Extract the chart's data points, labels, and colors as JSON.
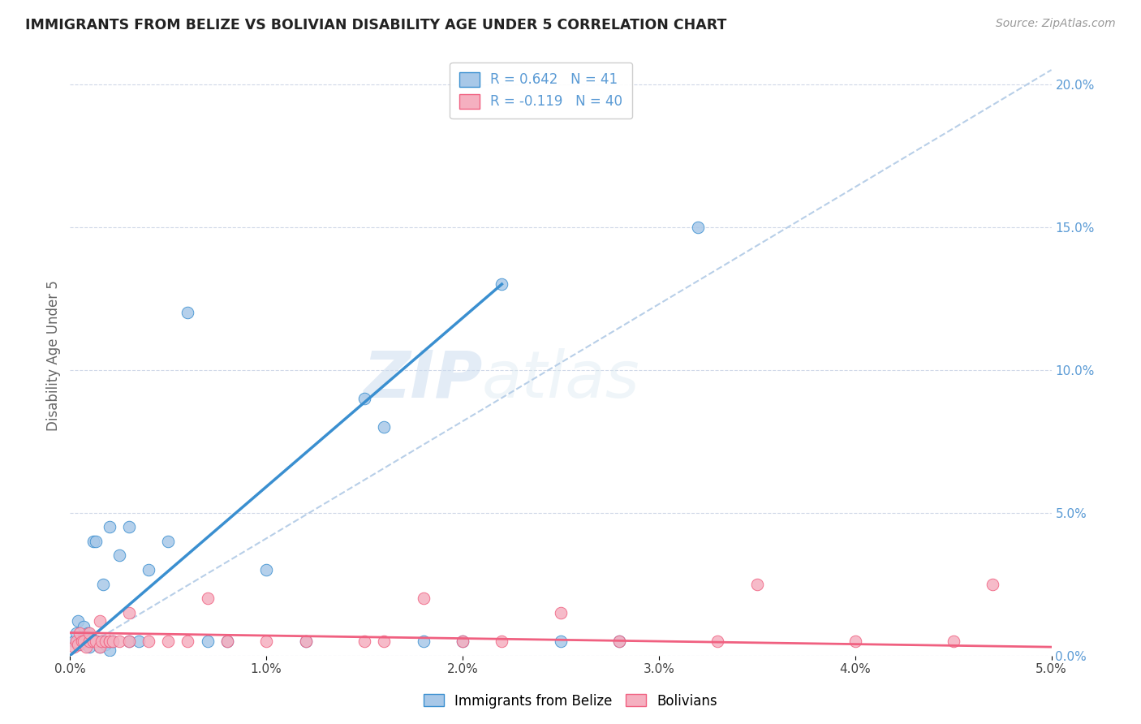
{
  "title": "IMMIGRANTS FROM BELIZE VS BOLIVIAN DISABILITY AGE UNDER 5 CORRELATION CHART",
  "source": "Source: ZipAtlas.com",
  "xlabel": "",
  "ylabel": "Disability Age Under 5",
  "legend_xlabel": "Immigrants from Belize",
  "legend_xlabel2": "Bolivians",
  "r_belize": 0.642,
  "n_belize": 41,
  "r_bolivian": -0.119,
  "n_bolivian": 40,
  "xlim": [
    0.0,
    0.05
  ],
  "ylim": [
    0.0,
    0.21
  ],
  "xticks": [
    0.0,
    0.01,
    0.02,
    0.03,
    0.04,
    0.05
  ],
  "yticks_right": [
    0.0,
    0.05,
    0.1,
    0.15,
    0.2
  ],
  "color_belize": "#a8c8e8",
  "color_bolivian": "#f5b0c0",
  "line_color_belize": "#3a8fd0",
  "line_color_bolivian": "#f06080",
  "dashed_line_color": "#b8cfe8",
  "background_color": "#ffffff",
  "grid_color": "#d0d8e8",
  "watermark_zip": "ZIP",
  "watermark_atlas": "atlas",
  "belize_x": [
    0.0002,
    0.0003,
    0.0004,
    0.0005,
    0.0006,
    0.0007,
    0.0008,
    0.0009,
    0.001,
    0.001,
    0.0011,
    0.0012,
    0.0013,
    0.0014,
    0.0015,
    0.0016,
    0.0017,
    0.0018,
    0.002,
    0.002,
    0.002,
    0.0022,
    0.0025,
    0.003,
    0.003,
    0.0035,
    0.004,
    0.005,
    0.006,
    0.007,
    0.008,
    0.01,
    0.012,
    0.015,
    0.016,
    0.018,
    0.02,
    0.022,
    0.025,
    0.028,
    0.032
  ],
  "belize_y": [
    0.005,
    0.008,
    0.012,
    0.004,
    0.006,
    0.01,
    0.005,
    0.008,
    0.005,
    0.003,
    0.006,
    0.04,
    0.04,
    0.005,
    0.003,
    0.005,
    0.025,
    0.004,
    0.002,
    0.045,
    0.005,
    0.005,
    0.035,
    0.005,
    0.045,
    0.005,
    0.03,
    0.04,
    0.12,
    0.005,
    0.005,
    0.03,
    0.005,
    0.09,
    0.08,
    0.005,
    0.005,
    0.13,
    0.005,
    0.005,
    0.15
  ],
  "bolivian_x": [
    0.0002,
    0.0003,
    0.0004,
    0.0005,
    0.0006,
    0.0007,
    0.0008,
    0.001,
    0.001,
    0.0012,
    0.0013,
    0.0015,
    0.0015,
    0.0016,
    0.0018,
    0.002,
    0.002,
    0.0022,
    0.0025,
    0.003,
    0.003,
    0.004,
    0.005,
    0.006,
    0.007,
    0.008,
    0.01,
    0.012,
    0.015,
    0.016,
    0.018,
    0.02,
    0.022,
    0.025,
    0.028,
    0.033,
    0.035,
    0.04,
    0.045,
    0.047
  ],
  "bolivian_y": [
    0.003,
    0.005,
    0.004,
    0.008,
    0.005,
    0.005,
    0.003,
    0.005,
    0.008,
    0.005,
    0.005,
    0.003,
    0.012,
    0.005,
    0.005,
    0.005,
    0.005,
    0.005,
    0.005,
    0.005,
    0.015,
    0.005,
    0.005,
    0.005,
    0.02,
    0.005,
    0.005,
    0.005,
    0.005,
    0.005,
    0.02,
    0.005,
    0.005,
    0.015,
    0.005,
    0.005,
    0.025,
    0.005,
    0.005,
    0.025
  ],
  "belize_line_x0": 0.0,
  "belize_line_y0": 0.0,
  "belize_line_x1": 0.022,
  "belize_line_y1": 0.13,
  "bolivian_line_x0": 0.0,
  "bolivian_line_y0": 0.008,
  "bolivian_line_x1": 0.05,
  "bolivian_line_y1": 0.003,
  "dash_line_x0": 0.0,
  "dash_line_y0": 0.0,
  "dash_line_x1": 0.05,
  "dash_line_y1": 0.205
}
